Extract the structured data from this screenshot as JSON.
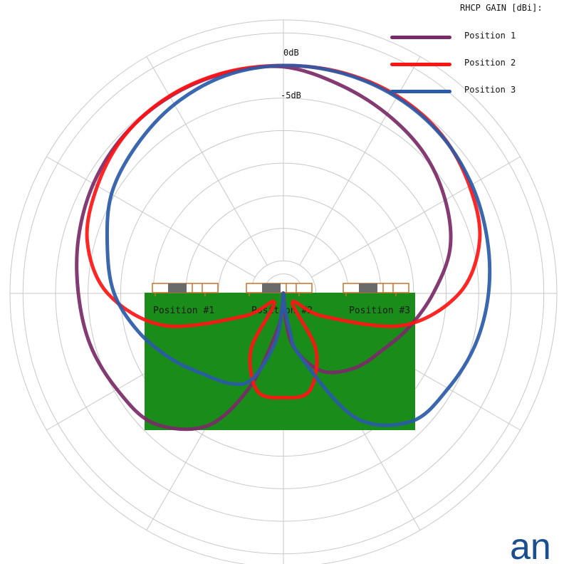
{
  "chart_data": {
    "type": "polar-line",
    "title": "",
    "legend_title": "RHCP GAIN [dBi]:",
    "legend_placement": "top-right",
    "radial_labels": [
      "0dB",
      "-5dB"
    ],
    "angular_grid_step_deg": 30,
    "board_labels": [
      "Position #1",
      "Position #2",
      "Position #3"
    ],
    "series": [
      {
        "name": "Position 1",
        "color": "#7a2a68",
        "angle_deg": [
          0,
          15,
          30,
          45,
          60,
          75,
          90,
          105,
          120,
          135,
          150,
          160,
          170,
          175,
          180,
          185,
          190,
          200,
          210,
          225,
          240,
          255,
          270,
          285,
          300,
          315,
          330,
          345
        ],
        "gain_db": [
          -5.2,
          -6.8,
          -8.2,
          -9.5,
          -11.3,
          -13.5,
          -17,
          -20,
          -22.5,
          -24,
          -26,
          -28.5,
          -32,
          -36,
          -40,
          -38,
          -34,
          -24.5,
          -16.5,
          -11.8,
          -10.5,
          -9.3,
          -8.5,
          -7.4,
          -6.3,
          -5.5,
          -5.1,
          -5.0
        ]
      },
      {
        "name": "Position 2",
        "color": "#ff1414",
        "angle_deg": [
          0,
          15,
          30,
          45,
          60,
          75,
          90,
          105,
          120,
          135,
          150,
          165,
          180,
          195,
          210,
          225,
          240,
          255,
          270,
          285,
          300,
          315,
          330,
          345
        ],
        "gain_db": [
          -5.0,
          -4.9,
          -5.0,
          -5.6,
          -7.0,
          -8.8,
          -13,
          -21,
          -33,
          -38,
          -30,
          -24.5,
          -24.0,
          -24.5,
          -30,
          -38,
          -33,
          -21,
          -13,
          -8.8,
          -7.0,
          -5.6,
          -5.0,
          -4.9
        ]
      },
      {
        "name": "Position 3",
        "color": "#2a5aa8",
        "angle_deg": [
          0,
          15,
          30,
          45,
          60,
          75,
          90,
          105,
          120,
          135,
          150,
          165,
          170,
          175,
          180,
          185,
          190,
          200,
          210,
          225,
          240,
          255,
          270,
          285,
          300,
          315,
          330,
          345
        ],
        "gain_db": [
          -5.0,
          -5.0,
          -5.2,
          -5.7,
          -6.6,
          -7.6,
          -8.5,
          -9.5,
          -10.8,
          -12.2,
          -18,
          -30,
          -34,
          -38,
          -40,
          -37,
          -32,
          -26,
          -24,
          -22.5,
          -20,
          -17,
          -14,
          -12,
          -9.5,
          -8.0,
          -6.5,
          -5.4
        ]
      }
    ]
  },
  "brand_text": "an"
}
